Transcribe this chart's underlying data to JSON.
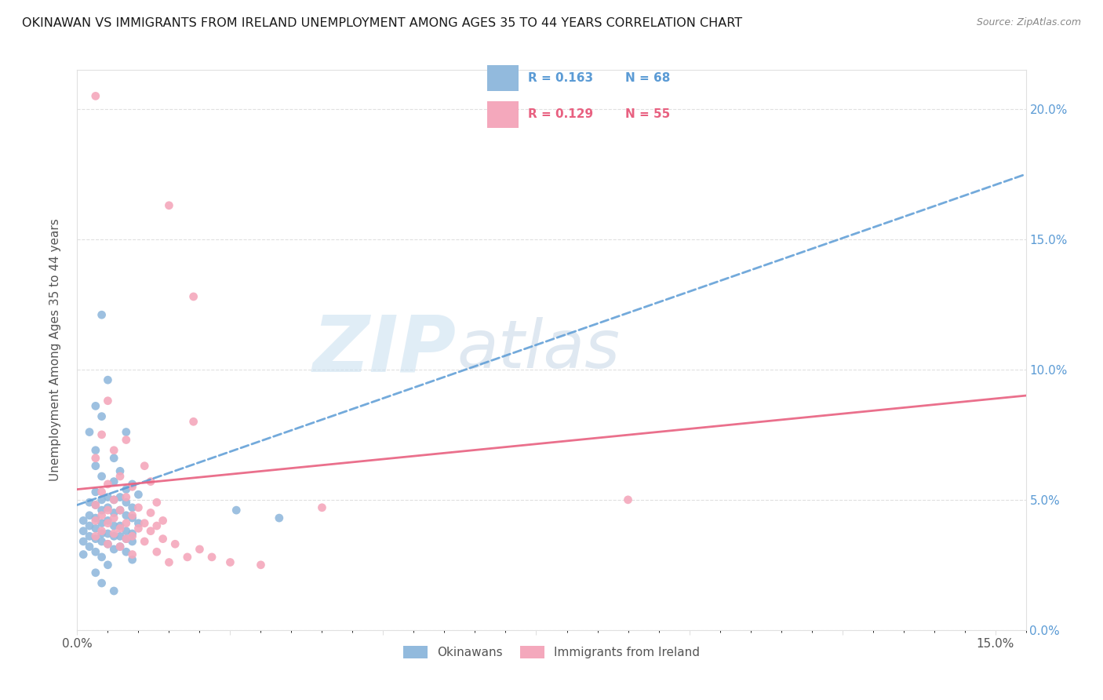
{
  "title": "OKINAWAN VS IMMIGRANTS FROM IRELAND UNEMPLOYMENT AMONG AGES 35 TO 44 YEARS CORRELATION CHART",
  "source": "Source: ZipAtlas.com",
  "ylabel": "Unemployment Among Ages 35 to 44 years",
  "xlim": [
    0.0,
    0.155
  ],
  "ylim": [
    0.0,
    0.215
  ],
  "blue_R": 0.163,
  "blue_N": 68,
  "pink_R": 0.129,
  "pink_N": 55,
  "blue_color": "#92BADD",
  "pink_color": "#F4A8BC",
  "blue_line_color": "#5B9BD5",
  "pink_line_color": "#E86080",
  "watermark_color": "#C8DFF0",
  "grid_color": "#E0E0E0",
  "legend_label_blue": "Okinawans",
  "legend_label_pink": "Immigrants from Ireland",
  "blue_trend_x0": 0.0,
  "blue_trend_y0": 0.048,
  "blue_trend_x1": 0.155,
  "blue_trend_y1": 0.175,
  "pink_trend_x0": 0.0,
  "pink_trend_y0": 0.054,
  "pink_trend_x1": 0.155,
  "pink_trend_y1": 0.09,
  "blue_scatter": [
    [
      0.004,
      0.121
    ],
    [
      0.005,
      0.096
    ],
    [
      0.003,
      0.086
    ],
    [
      0.004,
      0.082
    ],
    [
      0.002,
      0.076
    ],
    [
      0.008,
      0.076
    ],
    [
      0.003,
      0.069
    ],
    [
      0.006,
      0.066
    ],
    [
      0.003,
      0.063
    ],
    [
      0.007,
      0.061
    ],
    [
      0.004,
      0.059
    ],
    [
      0.006,
      0.057
    ],
    [
      0.009,
      0.056
    ],
    [
      0.008,
      0.054
    ],
    [
      0.003,
      0.053
    ],
    [
      0.01,
      0.052
    ],
    [
      0.005,
      0.051
    ],
    [
      0.007,
      0.051
    ],
    [
      0.004,
      0.05
    ],
    [
      0.006,
      0.05
    ],
    [
      0.002,
      0.049
    ],
    [
      0.008,
      0.049
    ],
    [
      0.003,
      0.048
    ],
    [
      0.009,
      0.047
    ],
    [
      0.005,
      0.047
    ],
    [
      0.007,
      0.046
    ],
    [
      0.004,
      0.046
    ],
    [
      0.006,
      0.045
    ],
    [
      0.002,
      0.044
    ],
    [
      0.008,
      0.044
    ],
    [
      0.003,
      0.043
    ],
    [
      0.009,
      0.043
    ],
    [
      0.001,
      0.042
    ],
    [
      0.005,
      0.042
    ],
    [
      0.01,
      0.041
    ],
    [
      0.004,
      0.041
    ],
    [
      0.007,
      0.04
    ],
    [
      0.002,
      0.04
    ],
    [
      0.006,
      0.04
    ],
    [
      0.003,
      0.039
    ],
    [
      0.008,
      0.038
    ],
    [
      0.001,
      0.038
    ],
    [
      0.004,
      0.037
    ],
    [
      0.009,
      0.037
    ],
    [
      0.005,
      0.037
    ],
    [
      0.007,
      0.036
    ],
    [
      0.002,
      0.036
    ],
    [
      0.006,
      0.036
    ],
    [
      0.003,
      0.035
    ],
    [
      0.008,
      0.035
    ],
    [
      0.001,
      0.034
    ],
    [
      0.004,
      0.034
    ],
    [
      0.009,
      0.034
    ],
    [
      0.005,
      0.033
    ],
    [
      0.007,
      0.032
    ],
    [
      0.002,
      0.032
    ],
    [
      0.006,
      0.031
    ],
    [
      0.003,
      0.03
    ],
    [
      0.008,
      0.03
    ],
    [
      0.001,
      0.029
    ],
    [
      0.004,
      0.028
    ],
    [
      0.009,
      0.027
    ],
    [
      0.005,
      0.025
    ],
    [
      0.003,
      0.022
    ],
    [
      0.004,
      0.018
    ],
    [
      0.006,
      0.015
    ],
    [
      0.026,
      0.046
    ],
    [
      0.033,
      0.043
    ]
  ],
  "pink_scatter": [
    [
      0.003,
      0.205
    ],
    [
      0.015,
      0.163
    ],
    [
      0.019,
      0.128
    ],
    [
      0.005,
      0.088
    ],
    [
      0.019,
      0.08
    ],
    [
      0.004,
      0.075
    ],
    [
      0.008,
      0.073
    ],
    [
      0.006,
      0.069
    ],
    [
      0.003,
      0.066
    ],
    [
      0.011,
      0.063
    ],
    [
      0.007,
      0.059
    ],
    [
      0.012,
      0.057
    ],
    [
      0.005,
      0.056
    ],
    [
      0.009,
      0.055
    ],
    [
      0.004,
      0.053
    ],
    [
      0.008,
      0.051
    ],
    [
      0.006,
      0.05
    ],
    [
      0.013,
      0.049
    ],
    [
      0.003,
      0.048
    ],
    [
      0.01,
      0.047
    ],
    [
      0.007,
      0.046
    ],
    [
      0.005,
      0.046
    ],
    [
      0.012,
      0.045
    ],
    [
      0.004,
      0.044
    ],
    [
      0.009,
      0.044
    ],
    [
      0.006,
      0.043
    ],
    [
      0.014,
      0.042
    ],
    [
      0.003,
      0.042
    ],
    [
      0.011,
      0.041
    ],
    [
      0.008,
      0.041
    ],
    [
      0.005,
      0.041
    ],
    [
      0.013,
      0.04
    ],
    [
      0.007,
      0.039
    ],
    [
      0.01,
      0.039
    ],
    [
      0.004,
      0.038
    ],
    [
      0.012,
      0.038
    ],
    [
      0.006,
      0.037
    ],
    [
      0.009,
      0.036
    ],
    [
      0.003,
      0.036
    ],
    [
      0.014,
      0.035
    ],
    [
      0.008,
      0.035
    ],
    [
      0.011,
      0.034
    ],
    [
      0.005,
      0.033
    ],
    [
      0.016,
      0.033
    ],
    [
      0.007,
      0.032
    ],
    [
      0.02,
      0.031
    ],
    [
      0.013,
      0.03
    ],
    [
      0.009,
      0.029
    ],
    [
      0.018,
      0.028
    ],
    [
      0.022,
      0.028
    ],
    [
      0.015,
      0.026
    ],
    [
      0.025,
      0.026
    ],
    [
      0.03,
      0.025
    ],
    [
      0.04,
      0.047
    ],
    [
      0.09,
      0.05
    ]
  ]
}
